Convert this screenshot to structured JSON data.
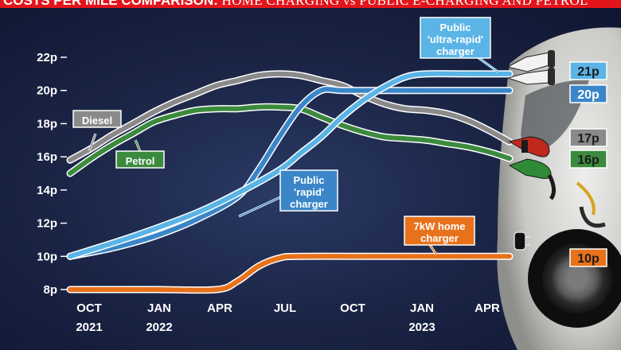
{
  "title": {
    "bold": "COSTS PER MILE COMPARISON:",
    "rest": "HOME CHARGING vs PUBLIC E-CHARGING AND PETROL"
  },
  "chart_data": {
    "type": "line",
    "title": "COSTS PER MILE COMPARISON: HOME CHARGING vs PUBLIC E-CHARGING AND PETROL",
    "ylim": [
      8,
      22
    ],
    "yticks": [
      "8p",
      "10p",
      "12p",
      "14p",
      "16p",
      "18p",
      "20p",
      "22p"
    ],
    "xticks": [
      {
        "month": "OCT",
        "year": "2021"
      },
      {
        "month": "JAN",
        "year": "2022"
      },
      {
        "month": "APR",
        "year": ""
      },
      {
        "month": "JUL",
        "year": ""
      },
      {
        "month": "OCT",
        "year": ""
      },
      {
        "month": "JAN",
        "year": "2023"
      },
      {
        "month": "APR",
        "year": ""
      }
    ],
    "x_unit": "months since Oct 2021",
    "series": [
      {
        "name": "Diesel",
        "color": "#8a8a8a",
        "label_lines": [
          "Diesel"
        ],
        "end_label": "17p",
        "points": [
          [
            0,
            15.8
          ],
          [
            1,
            16.5
          ],
          [
            2,
            17.3
          ],
          [
            3,
            18
          ],
          [
            4,
            18.7
          ],
          [
            5,
            19.3
          ],
          [
            6,
            19.8
          ],
          [
            7,
            20.3
          ],
          [
            8,
            20.6
          ],
          [
            9,
            20.9
          ],
          [
            10,
            21
          ],
          [
            11,
            20.9
          ],
          [
            12,
            20.6
          ],
          [
            13,
            20.3
          ],
          [
            14,
            19.7
          ],
          [
            15,
            19.2
          ],
          [
            16,
            18.9
          ],
          [
            17,
            18.8
          ],
          [
            18,
            18.6
          ],
          [
            19,
            18.2
          ],
          [
            20,
            17.6
          ],
          [
            21,
            16.9
          ]
        ]
      },
      {
        "name": "Petrol",
        "color": "#3c8a3e",
        "label_lines": [
          "Petrol"
        ],
        "end_label": "16p",
        "points": [
          [
            0,
            15
          ],
          [
            1,
            15.9
          ],
          [
            2,
            16.7
          ],
          [
            3,
            17.4
          ],
          [
            4,
            18.1
          ],
          [
            5,
            18.5
          ],
          [
            6,
            18.8
          ],
          [
            7,
            18.9
          ],
          [
            8,
            18.9
          ],
          [
            9,
            19
          ],
          [
            10,
            19
          ],
          [
            11,
            18.9
          ],
          [
            12,
            18.4
          ],
          [
            13,
            17.9
          ],
          [
            14,
            17.5
          ],
          [
            15,
            17.2
          ],
          [
            16,
            17.1
          ],
          [
            17,
            17
          ],
          [
            18,
            16.8
          ],
          [
            19,
            16.6
          ],
          [
            20,
            16.3
          ],
          [
            21,
            15.9
          ]
        ]
      },
      {
        "name": "Public 'ultra-rapid' charger",
        "color": "#5ab4e6",
        "label_lines": [
          "Public",
          "'ultra-rapid'",
          "charger"
        ],
        "end_label": "21p",
        "points": [
          [
            0,
            10
          ],
          [
            3,
            11.2
          ],
          [
            6,
            12.6
          ],
          [
            8,
            13.8
          ],
          [
            10,
            15.2
          ],
          [
            11,
            16.2
          ],
          [
            12,
            17.2
          ],
          [
            13,
            18.4
          ],
          [
            14,
            19.4
          ],
          [
            15,
            20.2
          ],
          [
            16,
            20.8
          ],
          [
            17,
            21
          ],
          [
            19,
            21
          ],
          [
            21,
            21
          ]
        ]
      },
      {
        "name": "Public 'rapid' charger",
        "color": "#3a86c8",
        "label_lines": [
          "Public",
          "'rapid'",
          "charger"
        ],
        "end_label": "20p",
        "points": [
          [
            0,
            10
          ],
          [
            2,
            10.5
          ],
          [
            4,
            11.2
          ],
          [
            6,
            12.2
          ],
          [
            8,
            13.6
          ],
          [
            9,
            15.2
          ],
          [
            10,
            17.2
          ],
          [
            11,
            19
          ],
          [
            12,
            20
          ],
          [
            13,
            20
          ],
          [
            15,
            20
          ],
          [
            18,
            20
          ],
          [
            21,
            20
          ]
        ]
      },
      {
        "name": "7kW home charger",
        "color": "#e8721c",
        "label_lines": [
          "7kW home",
          "charger"
        ],
        "end_label": "10p",
        "points": [
          [
            0,
            8
          ],
          [
            4,
            8
          ],
          [
            7,
            8
          ],
          [
            8,
            8.5
          ],
          [
            9,
            9.4
          ],
          [
            10,
            9.9
          ],
          [
            11,
            10
          ],
          [
            15,
            10
          ],
          [
            18,
            10
          ],
          [
            21,
            10
          ]
        ]
      }
    ]
  }
}
